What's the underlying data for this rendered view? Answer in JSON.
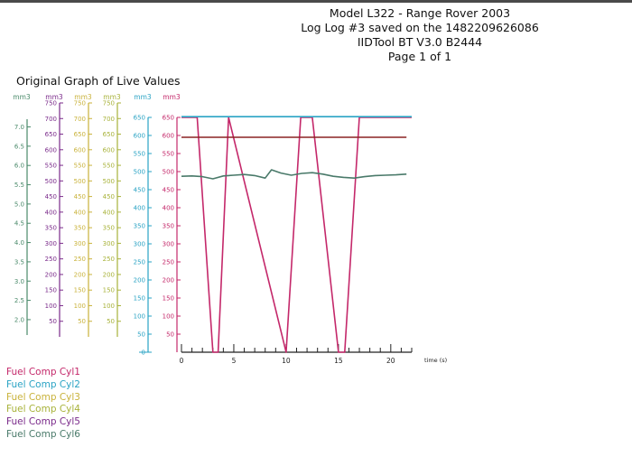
{
  "header": {
    "line1": "Model L322 - Range Rover 2003",
    "line2": "Log Log #3 saved on the 1482209626086",
    "line3": "IIDTool BT V3.0 B2444",
    "line4": "Page 1 of 1"
  },
  "graph_title": "Original Graph of Live Values",
  "chart_data": {
    "type": "line",
    "title": "Original Graph of Live Values",
    "xlabel": "time (s)",
    "xlim": [
      0,
      22
    ],
    "x_ticks": [
      0,
      5,
      10,
      15,
      20
    ],
    "x_minor_step": 1,
    "grid": false,
    "legend_position": "bottom-left",
    "axes": [
      {
        "unit": "mm3",
        "color": "#4a8a6a",
        "min": 1.6,
        "max": 7.2,
        "ticks": [
          2.0,
          2.5,
          3.0,
          3.5,
          4.0,
          4.5,
          5.0,
          5.5,
          6.0,
          6.5,
          7.0
        ],
        "tick_labels": [
          "2.0",
          "2.5",
          "3.0",
          "3.5",
          "4.0",
          "4.5",
          "5.0",
          "5.5",
          "6.0",
          "6.5",
          "7.0"
        ]
      },
      {
        "unit": "mm3",
        "color": "#7a2a8a",
        "min": 0,
        "max": 750,
        "ticks": [
          50,
          100,
          150,
          200,
          250,
          300,
          350,
          400,
          450,
          500,
          550,
          600,
          650,
          700,
          750
        ],
        "tick_labels": [
          "50",
          "100",
          "150",
          "200",
          "250",
          "300",
          "350",
          "400",
          "450",
          "500",
          "550",
          "600",
          "650",
          "700",
          "750"
        ]
      },
      {
        "unit": "mm3",
        "color": "#c9b23a",
        "min": 0,
        "max": 750,
        "ticks": [
          50,
          100,
          150,
          200,
          250,
          300,
          350,
          400,
          450,
          500,
          550,
          600,
          650,
          700,
          750
        ],
        "tick_labels": [
          "50",
          "100",
          "150",
          "200",
          "250",
          "300",
          "350",
          "400",
          "450",
          "500",
          "550",
          "600",
          "650",
          "700",
          "750"
        ]
      },
      {
        "unit": "mm3",
        "color": "#a8b23a",
        "min": 0,
        "max": 750,
        "ticks": [
          50,
          100,
          150,
          200,
          250,
          300,
          350,
          400,
          450,
          500,
          550,
          600,
          650,
          700,
          750
        ],
        "tick_labels": [
          "50",
          "100",
          "150",
          "200",
          "250",
          "300",
          "350",
          "400",
          "450",
          "500",
          "550",
          "600",
          "650",
          "700",
          "750"
        ]
      },
      {
        "unit": "mm3",
        "color": "#2aa3c4",
        "min": 0,
        "max": 650,
        "ticks": [
          0,
          50,
          100,
          150,
          200,
          250,
          300,
          350,
          400,
          450,
          500,
          550,
          600,
          650
        ],
        "tick_labels": [
          "0",
          "50",
          "100",
          "150",
          "200",
          "250",
          "300",
          "350",
          "400",
          "450",
          "500",
          "550",
          "600",
          "650"
        ]
      },
      {
        "unit": "mm3",
        "color": "#c4286a",
        "min": 0,
        "max": 650,
        "ticks": [
          50,
          100,
          150,
          200,
          250,
          300,
          350,
          400,
          450,
          500,
          550,
          600,
          650
        ],
        "tick_labels": [
          "50",
          "100",
          "150",
          "200",
          "250",
          "300",
          "350",
          "400",
          "450",
          "500",
          "550",
          "600",
          "650"
        ]
      }
    ],
    "series": [
      {
        "name": "Fuel Comp Cyl1",
        "color": "#c4286a",
        "x": [
          0,
          1.5,
          3.0,
          3.5,
          4.5,
          10.0,
          11.4,
          12.5,
          15.0,
          15.6,
          17.0,
          22.0
        ],
        "y": [
          650,
          650,
          0,
          0,
          650,
          0,
          650,
          650,
          0,
          0,
          650,
          650
        ]
      },
      {
        "name": "Fuel Comp Cyl2",
        "color": "#2aa3c4",
        "x": [
          0,
          22
        ],
        "y": [
          652,
          652
        ]
      },
      {
        "name": "Fuel Comp Cyl3",
        "color": "#c9b23a",
        "x": [],
        "y": []
      },
      {
        "name": "Fuel Comp Cyl4",
        "color": "#a8b23a",
        "x": [],
        "y": []
      },
      {
        "name": "Fuel Comp Cyl5",
        "color": "#7a2a8a",
        "x": [],
        "y": []
      },
      {
        "name": "Fuel Comp Cyl6",
        "color": "#4a7a6a",
        "x": [
          0,
          1.0,
          2.0,
          3.0,
          4.0,
          5.0,
          6.0,
          7.0,
          8.0,
          8.6,
          9.5,
          10.5,
          11.5,
          12.5,
          13.5,
          14.5,
          15.5,
          16.5,
          17.5,
          18.5,
          19.5,
          20.5,
          21.5
        ],
        "y": [
          487,
          488,
          486,
          480,
          488,
          490,
          492,
          489,
          482,
          505,
          496,
          490,
          495,
          497,
          493,
          487,
          484,
          482,
          486,
          489,
          490,
          491,
          493
        ]
      },
      {
        "name": "",
        "color": "#8b2323",
        "x": [
          0,
          21.5
        ],
        "y": [
          595,
          595
        ]
      }
    ]
  },
  "legend": [
    {
      "label": "Fuel Comp Cyl1",
      "color": "#c4286a"
    },
    {
      "label": "Fuel Comp Cyl2",
      "color": "#2aa3c4"
    },
    {
      "label": "Fuel Comp Cyl3",
      "color": "#c9b23a"
    },
    {
      "label": "Fuel Comp Cyl4",
      "color": "#a8b23a"
    },
    {
      "label": "Fuel Comp Cyl5",
      "color": "#7a2a8a"
    },
    {
      "label": "Fuel Comp Cyl6",
      "color": "#4a7a6a"
    }
  ]
}
